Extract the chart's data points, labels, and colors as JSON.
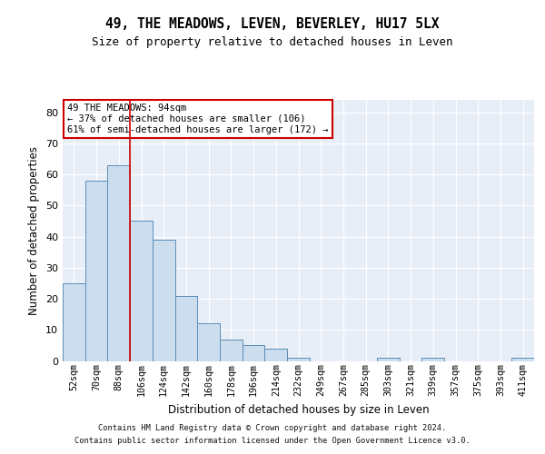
{
  "title": "49, THE MEADOWS, LEVEN, BEVERLEY, HU17 5LX",
  "subtitle": "Size of property relative to detached houses in Leven",
  "xlabel": "Distribution of detached houses by size in Leven",
  "ylabel": "Number of detached properties",
  "bar_color": "#ccdded",
  "bar_edge_color": "#5b8db8",
  "background_color": "#e8eef8",
  "grid_color": "#ffffff",
  "categories": [
    "52sqm",
    "70sqm",
    "88sqm",
    "106sqm",
    "124sqm",
    "142sqm",
    "160sqm",
    "178sqm",
    "196sqm",
    "214sqm",
    "232sqm",
    "249sqm",
    "267sqm",
    "285sqm",
    "303sqm",
    "321sqm",
    "339sqm",
    "357sqm",
    "375sqm",
    "393sqm",
    "411sqm"
  ],
  "values": [
    25,
    58,
    63,
    45,
    39,
    21,
    12,
    7,
    5,
    4,
    1,
    0,
    0,
    0,
    1,
    0,
    1,
    0,
    0,
    0,
    1
  ],
  "annotation_line1": "49 THE MEADOWS: 94sqm",
  "annotation_line2": "← 37% of detached houses are smaller (106)",
  "annotation_line3": "61% of semi-detached houses are larger (172) →",
  "vline_x": 2.5,
  "ylim_max": 84,
  "yticks": [
    0,
    10,
    20,
    30,
    40,
    50,
    60,
    70,
    80
  ],
  "footer_line1": "Contains HM Land Registry data © Crown copyright and database right 2024.",
  "footer_line2": "Contains public sector information licensed under the Open Government Licence v3.0."
}
